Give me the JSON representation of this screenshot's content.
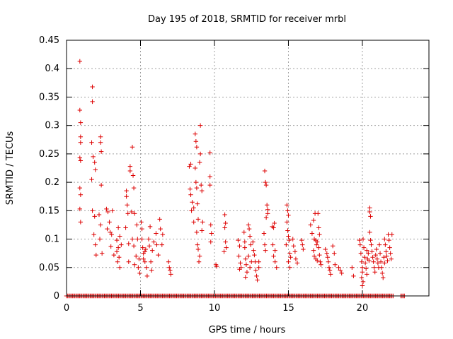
{
  "chart_data": {
    "type": "scatter",
    "title": "Day 195 of 2018, SRMTID for receiver mrbl",
    "xlabel": "GPS time / hours",
    "ylabel": "SRMTID / TECUs",
    "xlim": [
      0,
      24.5
    ],
    "ylim": [
      0,
      0.45
    ],
    "xticks": [
      0,
      5,
      10,
      15,
      20
    ],
    "xtick_labels": [
      "0",
      "5",
      "10",
      "15",
      "20"
    ],
    "yticks": [
      0,
      0.05,
      0.1,
      0.15,
      0.2,
      0.25,
      0.3,
      0.35,
      0.4,
      0.45
    ],
    "ytick_labels": [
      "0",
      "0.05",
      "0.1",
      "0.15",
      "0.2",
      "0.25",
      "0.3",
      "0.35",
      "0.4",
      "0.45"
    ],
    "grid": true,
    "marker": "+",
    "series": [
      {
        "name": "SRMTID",
        "color": "#dd0000",
        "points": [
          [
            0.9,
            0.413
          ],
          [
            0.9,
            0.327
          ],
          [
            0.95,
            0.305
          ],
          [
            0.95,
            0.28
          ],
          [
            0.95,
            0.27
          ],
          [
            0.9,
            0.243
          ],
          [
            0.95,
            0.238
          ],
          [
            0.9,
            0.19
          ],
          [
            0.95,
            0.178
          ],
          [
            0.9,
            0.153
          ],
          [
            0.95,
            0.13
          ],
          [
            1.75,
            0.368
          ],
          [
            1.75,
            0.342
          ],
          [
            1.7,
            0.27
          ],
          [
            1.8,
            0.245
          ],
          [
            1.7,
            0.205
          ],
          [
            1.9,
            0.235
          ],
          [
            1.95,
            0.222
          ],
          [
            1.75,
            0.15
          ],
          [
            1.9,
            0.14
          ],
          [
            1.85,
            0.108
          ],
          [
            1.95,
            0.09
          ],
          [
            2.0,
            0.072
          ],
          [
            2.3,
            0.28
          ],
          [
            2.3,
            0.27
          ],
          [
            2.35,
            0.254
          ],
          [
            2.35,
            0.195
          ],
          [
            2.2,
            0.143
          ],
          [
            2.3,
            0.125
          ],
          [
            2.25,
            0.1
          ],
          [
            2.4,
            0.075
          ],
          [
            2.7,
            0.153
          ],
          [
            2.8,
            0.148
          ],
          [
            2.9,
            0.13
          ],
          [
            2.75,
            0.118
          ],
          [
            2.95,
            0.112
          ],
          [
            3.1,
            0.15
          ],
          [
            3.05,
            0.108
          ],
          [
            3.0,
            0.087
          ],
          [
            3.2,
            0.072
          ],
          [
            3.4,
            0.098
          ],
          [
            3.5,
            0.085
          ],
          [
            3.5,
            0.12
          ],
          [
            3.55,
            0.068
          ],
          [
            3.45,
            0.06
          ],
          [
            3.6,
            0.05
          ],
          [
            3.6,
            0.105
          ],
          [
            3.7,
            0.09
          ],
          [
            3.4,
            0.078
          ],
          [
            4.05,
            0.185
          ],
          [
            4.05,
            0.175
          ],
          [
            4.1,
            0.16
          ],
          [
            4.15,
            0.145
          ],
          [
            4.0,
            0.12
          ],
          [
            4.2,
            0.092
          ],
          [
            4.2,
            0.06
          ],
          [
            4.3,
            0.228
          ],
          [
            4.3,
            0.22
          ],
          [
            4.45,
            0.262
          ],
          [
            4.5,
            0.212
          ],
          [
            4.55,
            0.19
          ],
          [
            4.4,
            0.148
          ],
          [
            4.6,
            0.145
          ],
          [
            4.45,
            0.1
          ],
          [
            4.55,
            0.088
          ],
          [
            4.6,
            0.055
          ],
          [
            4.75,
            0.125
          ],
          [
            4.8,
            0.1
          ],
          [
            4.7,
            0.07
          ],
          [
            4.9,
            0.065
          ],
          [
            4.85,
            0.05
          ],
          [
            4.95,
            0.04
          ],
          [
            5.05,
            0.13
          ],
          [
            5.1,
            0.118
          ],
          [
            5.1,
            0.1
          ],
          [
            5.15,
            0.085
          ],
          [
            5.2,
            0.075
          ],
          [
            5.2,
            0.065
          ],
          [
            5.3,
            0.06
          ],
          [
            5.3,
            0.078
          ],
          [
            5.35,
            0.082
          ],
          [
            5.4,
            0.05
          ],
          [
            5.45,
            0.035
          ],
          [
            5.55,
            0.1
          ],
          [
            5.65,
            0.122
          ],
          [
            5.6,
            0.088
          ],
          [
            5.7,
            0.06
          ],
          [
            5.75,
            0.045
          ],
          [
            5.8,
            0.08
          ],
          [
            5.9,
            0.095
          ],
          [
            6.05,
            0.11
          ],
          [
            6.1,
            0.09
          ],
          [
            6.2,
            0.072
          ],
          [
            6.3,
            0.135
          ],
          [
            6.35,
            0.118
          ],
          [
            6.5,
            0.108
          ],
          [
            6.45,
            0.09
          ],
          [
            6.9,
            0.06
          ],
          [
            6.95,
            0.05
          ],
          [
            7.0,
            0.045
          ],
          [
            7.05,
            0.038
          ],
          [
            8.3,
            0.228
          ],
          [
            8.4,
            0.232
          ],
          [
            8.35,
            0.188
          ],
          [
            8.4,
            0.178
          ],
          [
            8.5,
            0.165
          ],
          [
            8.45,
            0.15
          ],
          [
            8.6,
            0.155
          ],
          [
            8.6,
            0.13
          ],
          [
            8.7,
            0.285
          ],
          [
            8.75,
            0.272
          ],
          [
            8.8,
            0.262
          ],
          [
            8.7,
            0.225
          ],
          [
            8.75,
            0.2
          ],
          [
            8.8,
            0.19
          ],
          [
            8.85,
            0.162
          ],
          [
            8.9,
            0.135
          ],
          [
            8.8,
            0.112
          ],
          [
            8.85,
            0.09
          ],
          [
            8.9,
            0.082
          ],
          [
            8.95,
            0.06
          ],
          [
            9.05,
            0.3
          ],
          [
            9.05,
            0.25
          ],
          [
            9.0,
            0.235
          ],
          [
            9.1,
            0.195
          ],
          [
            9.15,
            0.185
          ],
          [
            9.2,
            0.13
          ],
          [
            9.15,
            0.115
          ],
          [
            9.0,
            0.07
          ],
          [
            9.7,
            0.252
          ],
          [
            9.7,
            0.21
          ],
          [
            9.7,
            0.195
          ],
          [
            9.75,
            0.125
          ],
          [
            9.8,
            0.11
          ],
          [
            9.75,
            0.095
          ],
          [
            10.1,
            0.055
          ],
          [
            10.15,
            0.052
          ],
          [
            10.7,
            0.143
          ],
          [
            10.75,
            0.128
          ],
          [
            10.7,
            0.12
          ],
          [
            10.75,
            0.095
          ],
          [
            10.8,
            0.085
          ],
          [
            10.65,
            0.078
          ],
          [
            11.6,
            0.098
          ],
          [
            11.7,
            0.088
          ],
          [
            11.65,
            0.07
          ],
          [
            11.75,
            0.058
          ],
          [
            11.8,
            0.05
          ],
          [
            11.7,
            0.047
          ],
          [
            12.0,
            0.112
          ],
          [
            12.05,
            0.095
          ],
          [
            12.05,
            0.085
          ],
          [
            12.1,
            0.065
          ],
          [
            12.15,
            0.055
          ],
          [
            12.2,
            0.042
          ],
          [
            12.1,
            0.033
          ],
          [
            12.3,
            0.125
          ],
          [
            12.35,
            0.118
          ],
          [
            12.4,
            0.105
          ],
          [
            12.45,
            0.09
          ],
          [
            12.3,
            0.07
          ],
          [
            12.5,
            0.06
          ],
          [
            12.4,
            0.05
          ],
          [
            12.6,
            0.095
          ],
          [
            12.65,
            0.08
          ],
          [
            12.7,
            0.072
          ],
          [
            12.75,
            0.06
          ],
          [
            12.8,
            0.045
          ],
          [
            12.85,
            0.035
          ],
          [
            12.9,
            0.028
          ],
          [
            13.0,
            0.06
          ],
          [
            13.0,
            0.05
          ],
          [
            13.4,
            0.22
          ],
          [
            13.45,
            0.2
          ],
          [
            13.5,
            0.195
          ],
          [
            13.55,
            0.16
          ],
          [
            13.6,
            0.152
          ],
          [
            13.6,
            0.145
          ],
          [
            13.5,
            0.138
          ],
          [
            13.35,
            0.11
          ],
          [
            13.4,
            0.09
          ],
          [
            13.45,
            0.08
          ],
          [
            13.9,
            0.122
          ],
          [
            14.0,
            0.12
          ],
          [
            14.05,
            0.128
          ],
          [
            13.95,
            0.09
          ],
          [
            14.1,
            0.08
          ],
          [
            14.0,
            0.07
          ],
          [
            14.1,
            0.06
          ],
          [
            14.2,
            0.05
          ],
          [
            14.9,
            0.16
          ],
          [
            14.95,
            0.15
          ],
          [
            15.0,
            0.142
          ],
          [
            14.9,
            0.13
          ],
          [
            14.95,
            0.115
          ],
          [
            15.0,
            0.105
          ],
          [
            15.05,
            0.098
          ],
          [
            14.85,
            0.09
          ],
          [
            15.1,
            0.075
          ],
          [
            15.15,
            0.068
          ],
          [
            15.0,
            0.06
          ],
          [
            15.1,
            0.05
          ],
          [
            15.3,
            0.1
          ],
          [
            15.35,
            0.088
          ],
          [
            15.45,
            0.078
          ],
          [
            15.5,
            0.065
          ],
          [
            15.6,
            0.058
          ],
          [
            15.9,
            0.098
          ],
          [
            15.95,
            0.09
          ],
          [
            16.0,
            0.082
          ],
          [
            16.5,
            0.125
          ],
          [
            16.6,
            0.11
          ],
          [
            16.7,
            0.133
          ],
          [
            16.75,
            0.1
          ],
          [
            16.8,
            0.145
          ],
          [
            16.85,
            0.098
          ],
          [
            16.9,
            0.09
          ],
          [
            16.7,
            0.08
          ],
          [
            16.75,
            0.07
          ],
          [
            16.85,
            0.065
          ],
          [
            16.95,
            0.062
          ],
          [
            17.0,
            0.145
          ],
          [
            17.05,
            0.12
          ],
          [
            17.1,
            0.108
          ],
          [
            16.95,
            0.095
          ],
          [
            17.05,
            0.085
          ],
          [
            17.1,
            0.072
          ],
          [
            17.15,
            0.06
          ],
          [
            17.2,
            0.055
          ],
          [
            17.5,
            0.082
          ],
          [
            17.6,
            0.075
          ],
          [
            17.65,
            0.068
          ],
          [
            17.7,
            0.06
          ],
          [
            17.75,
            0.05
          ],
          [
            17.8,
            0.045
          ],
          [
            17.85,
            0.038
          ],
          [
            18.0,
            0.088
          ],
          [
            18.1,
            0.075
          ],
          [
            18.15,
            0.055
          ],
          [
            18.4,
            0.05
          ],
          [
            18.5,
            0.045
          ],
          [
            18.6,
            0.04
          ],
          [
            19.3,
            0.05
          ],
          [
            19.4,
            0.035
          ],
          [
            19.8,
            0.098
          ],
          [
            19.85,
            0.09
          ],
          [
            19.9,
            0.075
          ],
          [
            19.95,
            0.06
          ],
          [
            20.0,
            0.05
          ],
          [
            20.0,
            0.042
          ],
          [
            19.95,
            0.032
          ],
          [
            20.05,
            0.025
          ],
          [
            20.0,
            0.018
          ],
          [
            20.05,
            0.1
          ],
          [
            20.1,
            0.085
          ],
          [
            20.15,
            0.068
          ],
          [
            20.2,
            0.058
          ],
          [
            20.25,
            0.048
          ],
          [
            20.3,
            0.038
          ],
          [
            20.35,
            0.065
          ],
          [
            20.4,
            0.075
          ],
          [
            20.3,
            0.08
          ],
          [
            20.45,
            0.062
          ],
          [
            20.5,
            0.155
          ],
          [
            20.5,
            0.148
          ],
          [
            20.55,
            0.14
          ],
          [
            20.5,
            0.112
          ],
          [
            20.55,
            0.098
          ],
          [
            20.6,
            0.09
          ],
          [
            20.65,
            0.078
          ],
          [
            20.7,
            0.068
          ],
          [
            20.75,
            0.06
          ],
          [
            20.8,
            0.05
          ],
          [
            20.85,
            0.042
          ],
          [
            20.9,
            0.072
          ],
          [
            20.95,
            0.082
          ],
          [
            21.0,
            0.065
          ],
          [
            21.05,
            0.058
          ],
          [
            21.1,
            0.05
          ],
          [
            21.15,
            0.09
          ],
          [
            21.2,
            0.075
          ],
          [
            21.25,
            0.06
          ],
          [
            21.3,
            0.05
          ],
          [
            21.35,
            0.04
          ],
          [
            21.4,
            0.032
          ],
          [
            21.45,
            0.068
          ],
          [
            21.5,
            0.058
          ],
          [
            21.5,
            0.1
          ],
          [
            21.55,
            0.09
          ],
          [
            21.6,
            0.078
          ],
          [
            21.65,
            0.07
          ],
          [
            21.7,
            0.062
          ],
          [
            21.75,
            0.108
          ],
          [
            21.8,
            0.098
          ],
          [
            21.85,
            0.085
          ],
          [
            21.9,
            0.075
          ],
          [
            21.95,
            0.065
          ],
          [
            22.0,
            0.108
          ]
        ],
        "zero_band_x_ranges": [
          [
            0.0,
            22.1
          ],
          [
            22.6,
            22.9
          ]
        ]
      }
    ]
  }
}
